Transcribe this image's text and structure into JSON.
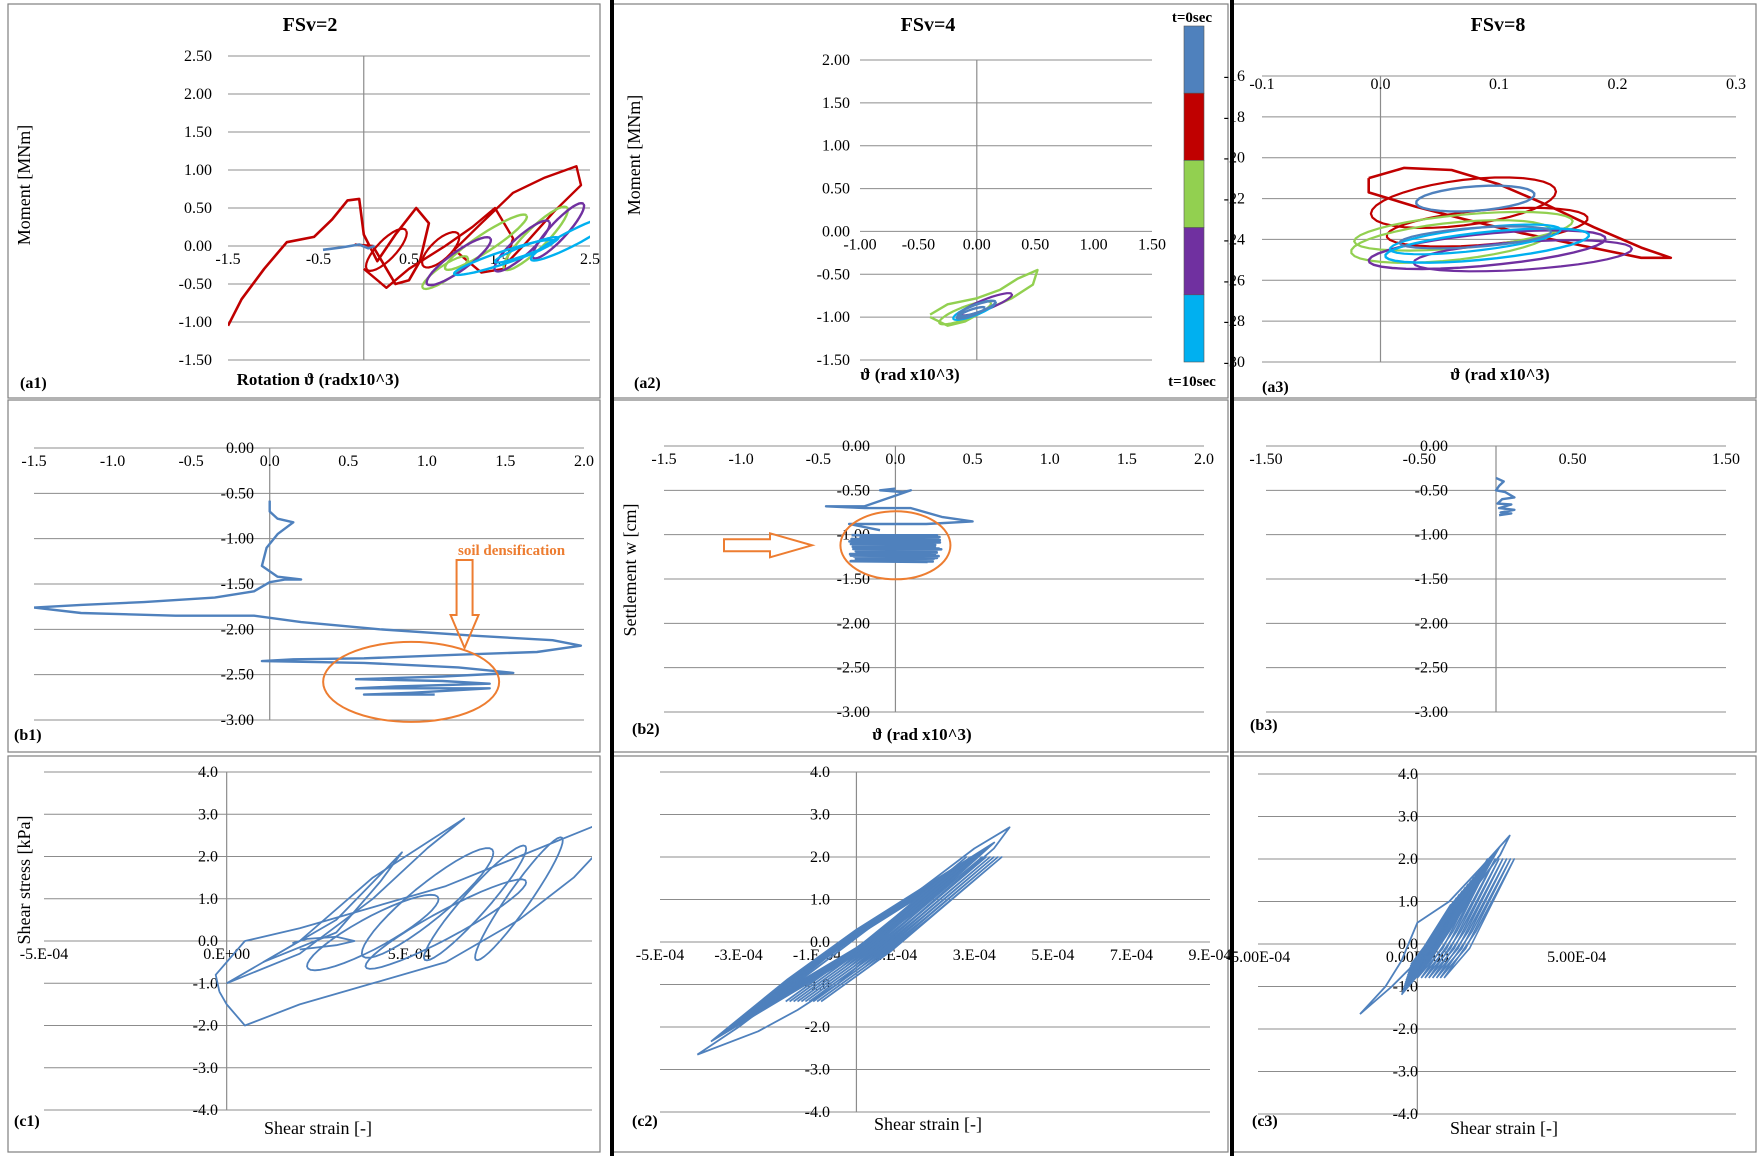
{
  "columns": [
    {
      "title": "FSv=2"
    },
    {
      "title": "FSv=4"
    },
    {
      "title": "FSv=8"
    }
  ],
  "colorbar": {
    "top_label": "t=0sec",
    "bottom_label": "t=10sec",
    "colors": [
      "#4F81BD",
      "#C00000",
      "#92D050",
      "#7030A0",
      "#00B0F0"
    ]
  },
  "annotations": {
    "b1_text": "soil densification",
    "color": "#ED7D31"
  },
  "chart_data": [
    {
      "id": "a1",
      "panel_label": "(a1)",
      "type": "line",
      "xlabel": "Rotation ϑ (radx10^3)",
      "ylabel": "Moment [MNm]",
      "xlim": [
        -1.5,
        2.5
      ],
      "ylim": [
        -1.5,
        2.5
      ],
      "xticks": [
        -1.5,
        -0.5,
        0.5,
        1.5,
        2.5
      ],
      "xtick_labels": [
        "-1.5",
        "-0.5",
        "0.5",
        "1.5",
        "2.5"
      ],
      "yticks": [
        -1.5,
        -1.0,
        -0.5,
        0.0,
        0.5,
        1.0,
        1.5,
        2.0,
        2.5
      ],
      "ytick_labels": [
        "-1.50",
        "-1.00",
        "-0.50",
        "0.00",
        "0.50",
        "1.00",
        "1.50",
        "2.00",
        "2.50"
      ],
      "series_colors": [
        "#4F81BD",
        "#C00000",
        "#92D050",
        "#7030A0",
        "#00B0F0"
      ]
    },
    {
      "id": "a2",
      "panel_label": "(a2)",
      "type": "line",
      "xlabel": "ϑ (rad x10^3)",
      "ylabel": "Moment [MNm]",
      "xlim": [
        -1.0,
        1.5
      ],
      "ylim": [
        -1.5,
        2.0
      ],
      "xticks": [
        -1.0,
        -0.5,
        0.0,
        0.5,
        1.0,
        1.5
      ],
      "xtick_labels": [
        "-1.00",
        "-0.50",
        "0.00",
        "0.50",
        "1.00",
        "1.50"
      ],
      "yticks": [
        -1.5,
        -1.0,
        -0.5,
        0.0,
        0.5,
        1.0,
        1.5,
        2.0
      ],
      "ytick_labels": [
        "-1.50",
        "-1.00",
        "-0.50",
        "0.00",
        "0.50",
        "1.00",
        "1.50",
        "2.00"
      ],
      "series_colors": [
        "#4F81BD",
        "#C00000",
        "#92D050",
        "#7030A0",
        "#00B0F0"
      ]
    },
    {
      "id": "a3",
      "panel_label": "(a3)",
      "type": "line",
      "xlabel": "ϑ (rad x10^3)",
      "ylabel": "",
      "xlim": [
        -0.1,
        0.3
      ],
      "ylim": [
        -30,
        -16
      ],
      "xticks": [
        -0.1,
        0.0,
        0.1,
        0.2,
        0.3
      ],
      "xtick_labels": [
        "-0.1",
        "0.0",
        "0.1",
        "0.2",
        "0.3"
      ],
      "yticks": [
        -30,
        -28,
        -26,
        -24,
        -22,
        -20,
        -18,
        -16
      ],
      "ytick_labels": [
        "-30",
        "-28",
        "-26",
        "-24",
        "-22",
        "-20",
        "-18",
        "-16"
      ],
      "series_colors": [
        "#4F81BD",
        "#C00000",
        "#92D050",
        "#7030A0",
        "#00B0F0"
      ]
    },
    {
      "id": "b1",
      "panel_label": "(b1)",
      "type": "line",
      "xlabel": "",
      "ylabel": "",
      "xlim": [
        -1.5,
        2.0
      ],
      "ylim": [
        -3.0,
        0.0
      ],
      "xticks": [
        -1.5,
        -1.0,
        -0.5,
        0.0,
        0.5,
        1.0,
        1.5,
        2.0
      ],
      "xtick_labels": [
        "-1.5",
        "-1.0",
        "-0.5",
        "0.0",
        "0.5",
        "1.0",
        "1.5",
        "2.0"
      ],
      "yticks": [
        -3.0,
        -2.5,
        -2.0,
        -1.5,
        -1.0,
        -0.5,
        0.0
      ],
      "ytick_labels": [
        "-3.00",
        "-2.50",
        "-2.00",
        "-1.50",
        "-1.00",
        "-0.50",
        "0.00"
      ],
      "series_colors": [
        "#4F81BD"
      ]
    },
    {
      "id": "b2",
      "panel_label": "(b2)",
      "type": "line",
      "xlabel": "ϑ (rad x10^3)",
      "ylabel": "Settlement w [cm]",
      "xlim": [
        -1.5,
        2.0
      ],
      "ylim": [
        -3.0,
        0.0
      ],
      "xticks": [
        -1.5,
        -1.0,
        -0.5,
        0.0,
        0.5,
        1.0,
        1.5,
        2.0
      ],
      "xtick_labels": [
        "-1.5",
        "-1.0",
        "-0.5",
        "0.0",
        "0.5",
        "1.0",
        "1.5",
        "2.0"
      ],
      "yticks": [
        -3.0,
        -2.5,
        -2.0,
        -1.5,
        -1.0,
        -0.5,
        0.0
      ],
      "ytick_labels": [
        "-3.00",
        "-2.50",
        "-2.00",
        "-1.50",
        "-1.00",
        "-0.50",
        "0.00"
      ],
      "series_colors": [
        "#4F81BD"
      ]
    },
    {
      "id": "b3",
      "panel_label": "(b3)",
      "type": "line",
      "xlabel": "",
      "ylabel": "",
      "xlim": [
        -1.5,
        1.5
      ],
      "ylim": [
        -3.0,
        0.0
      ],
      "xticks": [
        -1.5,
        -0.5,
        0.5,
        1.5
      ],
      "xtick_labels": [
        "-1.50",
        "-0.50",
        "0.50",
        "1.50"
      ],
      "yticks": [
        -3.0,
        -2.5,
        -2.0,
        -1.5,
        -1.0,
        -0.5,
        0.0
      ],
      "ytick_labels": [
        "-3.00",
        "-2.50",
        "-2.00",
        "-1.50",
        "-1.00",
        "-0.50",
        "0.00"
      ],
      "series_colors": [
        "#4F81BD"
      ]
    },
    {
      "id": "c1",
      "panel_label": "(c1)",
      "type": "line",
      "xlabel": "Shear strain [-]",
      "ylabel": "Shear stress [kPa]",
      "xlim": [
        -0.0005,
        0.001
      ],
      "ylim": [
        -4.0,
        4.0
      ],
      "xticks": [
        -0.0005,
        0.0,
        0.0005
      ],
      "xtick_labels": [
        "-5.E-04",
        "0.E+00",
        "5.E-04"
      ],
      "yticks": [
        -4,
        -3,
        -2,
        -1,
        0,
        1,
        2,
        3,
        4
      ],
      "ytick_labels": [
        "-4.0",
        "-3.0",
        "-2.0",
        "-1.0",
        "0.0",
        "1.0",
        "2.0",
        "3.0",
        "4.0"
      ],
      "series_colors": [
        "#4F81BD"
      ]
    },
    {
      "id": "c2",
      "panel_label": "(c2)",
      "type": "line",
      "xlabel": "Shear strain [-]",
      "ylabel": "",
      "xlim": [
        -0.0005,
        0.0009
      ],
      "ylim": [
        -4.0,
        4.0
      ],
      "xticks": [
        -0.0005,
        -0.0003,
        -0.0001,
        0.0001,
        0.0003,
        0.0005,
        0.0007,
        0.0009
      ],
      "xtick_labels": [
        "-5.E-04",
        "-3.E-04",
        "-1.E-04",
        "1.E-04",
        "3.E-04",
        "5.E-04",
        "7.E-04",
        "9.E-04"
      ],
      "yticks": [
        -4,
        -3,
        -2,
        -1,
        0,
        1,
        2,
        3,
        4
      ],
      "ytick_labels": [
        "-4.0",
        "-3.0",
        "-2.0",
        "-1.0",
        "0.0",
        "1.0",
        "2.0",
        "3.0",
        "4.0"
      ],
      "series_colors": [
        "#4F81BD"
      ]
    },
    {
      "id": "c3",
      "panel_label": "(c3)",
      "type": "line",
      "xlabel": "Shear strain [-]",
      "ylabel": "",
      "xlim": [
        -0.0005,
        0.001
      ],
      "ylim": [
        -4.0,
        4.0
      ],
      "xticks": [
        -0.0005,
        0.0,
        0.0005
      ],
      "xtick_labels": [
        "-5.00E-04",
        "0.00E+00",
        "5.00E-04"
      ],
      "yticks": [
        -4,
        -3,
        -2,
        -1,
        0,
        1,
        2,
        3,
        4
      ],
      "ytick_labels": [
        "-4.0",
        "-3.0",
        "-2.0",
        "-1.0",
        "0.0",
        "1.0",
        "2.0",
        "3.0",
        "4.0"
      ],
      "series_colors": [
        "#4F81BD"
      ]
    }
  ]
}
